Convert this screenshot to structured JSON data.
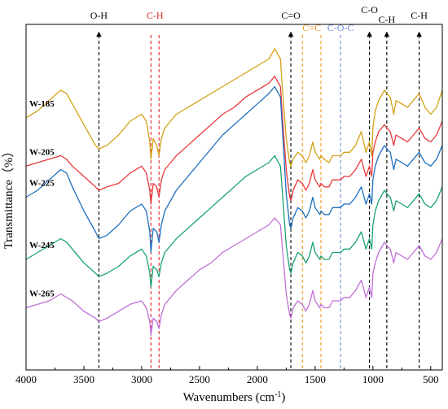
{
  "chart_data": {
    "type": "line",
    "title": "",
    "xlabel_main": "Wavenumbers (cm",
    "xlabel_sup": "-1",
    "xlabel_end": ")",
    "ylabel": "Transmittance（%）",
    "xlim": [
      4000,
      400
    ],
    "x_reversed": true,
    "ylim": [
      0,
      100
    ],
    "x_ticks": [
      "4000",
      "3500",
      "3000",
      "2500",
      "2000",
      "1500",
      "1000",
      "500"
    ],
    "x_tick_values": [
      4000,
      3500,
      3000,
      2500,
      2000,
      1500,
      1000,
      500
    ],
    "y_ticks_shown": false,
    "grid": false,
    "legend": "labels next to each curve on the left",
    "annotations": [
      {
        "label": "O-H",
        "x": 3370,
        "color": "#000000"
      },
      {
        "label": "C-H",
        "x": 2920,
        "x2": 2850,
        "color": "#e0262a"
      },
      {
        "label": "C=O",
        "x": 1710,
        "color": "#000000"
      },
      {
        "label": "C=C",
        "x": 1610,
        "x2": 1450,
        "color": "#f59a23"
      },
      {
        "label": "C-O-C",
        "x": 1280,
        "color": "#6f8fd6"
      },
      {
        "label": "C-O",
        "x": 1030,
        "color": "#000000"
      },
      {
        "label": "C-H",
        "x": 880,
        "color": "#000000"
      },
      {
        "label": "C-H",
        "x": 600,
        "color": "#000000"
      }
    ],
    "series": [
      {
        "name": "W-185",
        "color": "#d4a017",
        "x": [
          4000,
          3900,
          3800,
          3700,
          3650,
          3600,
          3500,
          3400,
          3370,
          3300,
          3200,
          3100,
          3000,
          2960,
          2930,
          2920,
          2900,
          2870,
          2850,
          2830,
          2800,
          2700,
          2600,
          2500,
          2400,
          2300,
          2200,
          2100,
          2000,
          1900,
          1850,
          1800,
          1780,
          1750,
          1720,
          1710,
          1690,
          1650,
          1610,
          1580,
          1550,
          1520,
          1500,
          1460,
          1450,
          1420,
          1380,
          1350,
          1300,
          1280,
          1250,
          1200,
          1150,
          1100,
          1060,
          1030,
          1010,
          1000,
          980,
          950,
          900,
          880,
          850,
          820,
          800,
          750,
          700,
          650,
          600,
          550,
          500,
          450,
          400
        ],
        "y": [
          73,
          75,
          78,
          81,
          80,
          77,
          71,
          65,
          64,
          65,
          68,
          72,
          74,
          72,
          66,
          61,
          67,
          65,
          62,
          67,
          70,
          74,
          76,
          78,
          80,
          82,
          84,
          86,
          88,
          90,
          93,
          90,
          80,
          67,
          60,
          59,
          61,
          63,
          62,
          60,
          62,
          66,
          63,
          61,
          62,
          61,
          60,
          62,
          62,
          62,
          63,
          63,
          65,
          69,
          63,
          66,
          62,
          70,
          75,
          78,
          81,
          80,
          79,
          74,
          78,
          77,
          76,
          78,
          80,
          76,
          74,
          76,
          81
        ]
      },
      {
        "name": "W-205",
        "color": "#e8383d",
        "x": [
          4000,
          3900,
          3800,
          3700,
          3650,
          3600,
          3500,
          3400,
          3370,
          3300,
          3200,
          3100,
          3000,
          2960,
          2930,
          2920,
          2900,
          2870,
          2850,
          2830,
          2800,
          2700,
          2600,
          2500,
          2400,
          2300,
          2200,
          2100,
          2000,
          1900,
          1850,
          1800,
          1780,
          1750,
          1720,
          1710,
          1690,
          1650,
          1610,
          1580,
          1550,
          1520,
          1500,
          1460,
          1450,
          1420,
          1380,
          1350,
          1300,
          1280,
          1250,
          1200,
          1150,
          1100,
          1060,
          1030,
          1010,
          1000,
          980,
          950,
          900,
          880,
          850,
          820,
          800,
          750,
          700,
          650,
          600,
          550,
          500,
          450,
          400
        ],
        "y": [
          59,
          60,
          61,
          62,
          61,
          59,
          56,
          53,
          52,
          53,
          54,
          57,
          59,
          57,
          52,
          48,
          54,
          53,
          50,
          55,
          58,
          62,
          65,
          68,
          71,
          74,
          76,
          79,
          81,
          83,
          85,
          82,
          72,
          58,
          50,
          49,
          52,
          55,
          54,
          52,
          54,
          58,
          55,
          53,
          54,
          53,
          53,
          55,
          55,
          55,
          56,
          56,
          58,
          61,
          56,
          59,
          56,
          63,
          66,
          69,
          71,
          70,
          69,
          65,
          68,
          67,
          66,
          68,
          70,
          67,
          66,
          68,
          72
        ]
      },
      {
        "name": "W-225",
        "color": "#1e6fbf",
        "x": [
          4000,
          3900,
          3800,
          3700,
          3650,
          3600,
          3500,
          3400,
          3370,
          3300,
          3200,
          3100,
          3000,
          2960,
          2930,
          2920,
          2900,
          2870,
          2850,
          2830,
          2800,
          2700,
          2600,
          2500,
          2400,
          2300,
          2200,
          2100,
          2000,
          1900,
          1850,
          1800,
          1780,
          1750,
          1720,
          1710,
          1690,
          1650,
          1610,
          1580,
          1550,
          1520,
          1500,
          1460,
          1450,
          1420,
          1380,
          1350,
          1300,
          1280,
          1250,
          1200,
          1150,
          1100,
          1060,
          1030,
          1010,
          1000,
          980,
          950,
          900,
          880,
          850,
          820,
          800,
          750,
          700,
          650,
          600,
          550,
          500,
          450,
          400
        ],
        "y": [
          50,
          52,
          55,
          58,
          57,
          53,
          46,
          40,
          38,
          39,
          42,
          46,
          48,
          46,
          40,
          34,
          41,
          40,
          37,
          42,
          46,
          52,
          56,
          60,
          64,
          68,
          71,
          74,
          77,
          80,
          82,
          79,
          68,
          51,
          42,
          41,
          44,
          47,
          46,
          44,
          46,
          50,
          47,
          45,
          46,
          45,
          45,
          47,
          47,
          47,
          48,
          48,
          50,
          53,
          48,
          51,
          48,
          55,
          59,
          62,
          65,
          64,
          63,
          58,
          61,
          60,
          59,
          61,
          63,
          60,
          59,
          61,
          65
        ]
      },
      {
        "name": "W-245",
        "color": "#1aa36f",
        "x": [
          4000,
          3900,
          3800,
          3700,
          3650,
          3600,
          3500,
          3400,
          3370,
          3300,
          3200,
          3100,
          3000,
          2960,
          2930,
          2920,
          2900,
          2870,
          2850,
          2830,
          2800,
          2700,
          2600,
          2500,
          2400,
          2300,
          2200,
          2100,
          2000,
          1900,
          1850,
          1800,
          1780,
          1750,
          1720,
          1710,
          1690,
          1650,
          1610,
          1580,
          1550,
          1520,
          1500,
          1460,
          1450,
          1420,
          1380,
          1350,
          1300,
          1280,
          1250,
          1200,
          1150,
          1100,
          1060,
          1030,
          1010,
          1000,
          980,
          950,
          900,
          880,
          850,
          820,
          800,
          750,
          700,
          650,
          600,
          550,
          500,
          450,
          400
        ],
        "y": [
          32,
          34,
          36,
          38,
          37,
          35,
          31,
          28,
          27,
          28,
          30,
          33,
          35,
          33,
          28,
          24,
          30,
          29,
          27,
          31,
          34,
          38,
          41,
          44,
          47,
          50,
          53,
          56,
          58,
          60,
          62,
          59,
          50,
          36,
          29,
          28,
          31,
          34,
          33,
          31,
          33,
          37,
          34,
          32,
          33,
          32,
          32,
          34,
          34,
          34,
          35,
          35,
          37,
          40,
          35,
          38,
          35,
          42,
          46,
          49,
          52,
          51,
          50,
          46,
          49,
          48,
          47,
          49,
          51,
          48,
          47,
          49,
          53
        ]
      },
      {
        "name": "W-265",
        "color": "#c06fd8",
        "x": [
          4000,
          3900,
          3800,
          3700,
          3650,
          3600,
          3500,
          3400,
          3370,
          3300,
          3200,
          3100,
          3000,
          2960,
          2930,
          2920,
          2900,
          2870,
          2850,
          2830,
          2800,
          2700,
          2600,
          2500,
          2400,
          2300,
          2200,
          2100,
          2000,
          1900,
          1850,
          1800,
          1780,
          1750,
          1720,
          1710,
          1690,
          1650,
          1610,
          1580,
          1550,
          1520,
          1500,
          1460,
          1450,
          1420,
          1380,
          1350,
          1300,
          1280,
          1250,
          1200,
          1150,
          1100,
          1060,
          1030,
          1010,
          1000,
          980,
          950,
          900,
          880,
          850,
          820,
          800,
          750,
          700,
          650,
          600,
          550,
          500,
          450,
          400
        ],
        "y": [
          18,
          19,
          20,
          22,
          21,
          20,
          17,
          15,
          14,
          15,
          17,
          19,
          20,
          18,
          14,
          10,
          15,
          14,
          12,
          16,
          19,
          23,
          26,
          29,
          31,
          34,
          36,
          38,
          40,
          42,
          44,
          42,
          34,
          22,
          16,
          15,
          18,
          20,
          19,
          17,
          19,
          23,
          20,
          18,
          19,
          18,
          18,
          20,
          20,
          20,
          21,
          21,
          23,
          26,
          21,
          24,
          21,
          28,
          31,
          34,
          37,
          36,
          35,
          31,
          34,
          33,
          32,
          34,
          36,
          33,
          32,
          34,
          38
        ]
      }
    ],
    "series_label_anchor_x": 4000
  }
}
